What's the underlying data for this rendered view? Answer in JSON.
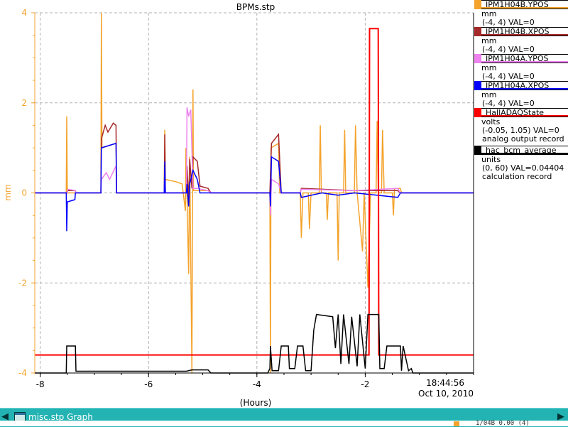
{
  "chart_data": {
    "type": "line",
    "title": "BPMs.stp",
    "xlabel": "(Hours)",
    "ylabel": "mm",
    "xlim": [
      -8.1,
      0
    ],
    "ylim": [
      -4,
      4
    ],
    "x_ticks": [
      -8,
      -6,
      -4,
      -2
    ],
    "x_tick_labels": [
      "-8",
      "-6",
      "-4",
      "-2"
    ],
    "y_ticks": [
      -4,
      -2,
      0,
      2,
      4
    ],
    "y_tick_labels": [
      "-4",
      "-2",
      "0",
      "2",
      "4"
    ],
    "end_time": "18:44:56",
    "end_date": "Oct 10, 2010",
    "grid": true,
    "legend_placement": "right",
    "axis_color": "#f4a32c",
    "series": [
      {
        "name": "IPM1H04B.YPOS",
        "color": "#f4a32c",
        "points": [
          [
            -8.1,
            0
          ],
          [
            -7.52,
            0
          ],
          [
            -7.51,
            1.7
          ],
          [
            -7.5,
            0
          ],
          [
            -6.88,
            0
          ],
          [
            -6.87,
            4
          ],
          [
            -6.86,
            1.0
          ],
          [
            -6.6,
            1.1
          ],
          [
            -6.59,
            0
          ],
          [
            -5.71,
            0
          ],
          [
            -5.7,
            1.4
          ],
          [
            -5.69,
            0.3
          ],
          [
            -5.5,
            0.25
          ],
          [
            -5.38,
            0.2
          ],
          [
            -5.32,
            -0.4
          ],
          [
            -5.31,
            1.0
          ],
          [
            -5.26,
            -1.8
          ],
          [
            -5.24,
            0.8
          ],
          [
            -5.2,
            -4
          ],
          [
            -5.18,
            2.3
          ],
          [
            -5.17,
            0.05
          ],
          [
            -4.9,
            0.05
          ],
          [
            -4.85,
            0
          ],
          [
            -3.76,
            0
          ],
          [
            -3.75,
            -4
          ],
          [
            -3.74,
            1.0
          ],
          [
            -3.6,
            1.1
          ],
          [
            -3.58,
            0
          ],
          [
            -3.2,
            0
          ],
          [
            -3.18,
            -1.0
          ],
          [
            -3.15,
            0
          ],
          [
            -3.05,
            0
          ],
          [
            -3.03,
            -0.8
          ],
          [
            -3.0,
            0
          ],
          [
            -2.85,
            0
          ],
          [
            -2.83,
            1.5
          ],
          [
            -2.81,
            0
          ],
          [
            -2.72,
            0
          ],
          [
            -2.7,
            -0.6
          ],
          [
            -2.68,
            0
          ],
          [
            -2.52,
            0
          ],
          [
            -2.5,
            -1.5
          ],
          [
            -2.48,
            0
          ],
          [
            -2.4,
            0
          ],
          [
            -2.38,
            1.4
          ],
          [
            -2.36,
            0
          ],
          [
            -2.2,
            0
          ],
          [
            -2.18,
            1.5
          ],
          [
            -2.15,
            0
          ],
          [
            -2.05,
            -1.3
          ],
          [
            -2.02,
            0
          ],
          [
            -1.95,
            -2.1
          ],
          [
            -1.9,
            0
          ],
          [
            -1.8,
            0
          ],
          [
            -1.78,
            1.6
          ],
          [
            -1.76,
            0
          ],
          [
            -1.7,
            0
          ],
          [
            -1.68,
            1.4
          ],
          [
            -1.65,
            0
          ],
          [
            -1.5,
            0
          ],
          [
            -1.48,
            -0.5
          ],
          [
            -1.46,
            0.1
          ],
          [
            -1.35,
            0.1
          ],
          [
            -1.33,
            0
          ],
          [
            0,
            0
          ]
        ]
      },
      {
        "name": "IPM1H04B.XPOS",
        "color": "#a52a2a",
        "points": [
          [
            -8.1,
            0
          ],
          [
            -7.5,
            0
          ],
          [
            -7.49,
            0.05
          ],
          [
            -7.35,
            0.05
          ],
          [
            -7.34,
            0
          ],
          [
            -6.88,
            0
          ],
          [
            -6.87,
            1.2
          ],
          [
            -6.8,
            1.5
          ],
          [
            -6.75,
            1.35
          ],
          [
            -6.65,
            1.55
          ],
          [
            -6.6,
            1.5
          ],
          [
            -6.59,
            0
          ],
          [
            -5.71,
            0
          ],
          [
            -5.7,
            1.3
          ],
          [
            -5.69,
            0
          ],
          [
            -5.3,
            0
          ],
          [
            -5.29,
            0.6
          ],
          [
            -5.26,
            -0.2
          ],
          [
            -5.24,
            0.75
          ],
          [
            -5.2,
            0.1
          ],
          [
            -5.18,
            0.8
          ],
          [
            -5.1,
            0.7
          ],
          [
            -5.05,
            0.15
          ],
          [
            -4.9,
            0.1
          ],
          [
            -4.85,
            0
          ],
          [
            -3.76,
            0
          ],
          [
            -3.75,
            0.4
          ],
          [
            -3.73,
            1.1
          ],
          [
            -3.6,
            1.3
          ],
          [
            -3.55,
            0
          ],
          [
            -3.2,
            0
          ],
          [
            -3.18,
            0.1
          ],
          [
            -2.2,
            0.05
          ],
          [
            -1.4,
            0.05
          ],
          [
            -1.35,
            0
          ],
          [
            0,
            0
          ]
        ]
      },
      {
        "name": "IPM1H04A.YPOS",
        "color": "#ee82ee",
        "points": [
          [
            -8.1,
            0
          ],
          [
            -7.5,
            0
          ],
          [
            -7.49,
            0.08
          ],
          [
            -7.35,
            0.05
          ],
          [
            -7.34,
            0
          ],
          [
            -6.88,
            0
          ],
          [
            -6.87,
            0.3
          ],
          [
            -6.78,
            0.45
          ],
          [
            -6.72,
            0.3
          ],
          [
            -6.6,
            0.6
          ],
          [
            -6.59,
            0
          ],
          [
            -5.71,
            0
          ],
          [
            -5.7,
            0.5
          ],
          [
            -5.69,
            0
          ],
          [
            -5.3,
            0
          ],
          [
            -5.29,
            1.9
          ],
          [
            -5.26,
            1.7
          ],
          [
            -5.22,
            1.85
          ],
          [
            -5.18,
            0.1
          ],
          [
            -5.1,
            0.1
          ],
          [
            -4.9,
            0.05
          ],
          [
            -4.85,
            0
          ],
          [
            -3.76,
            0
          ],
          [
            -3.75,
            -0.5
          ],
          [
            -3.73,
            0.3
          ],
          [
            -3.6,
            0.2
          ],
          [
            -3.55,
            0
          ],
          [
            -3.2,
            0
          ],
          [
            -3.18,
            0.08
          ],
          [
            -2.2,
            0.05
          ],
          [
            -1.4,
            0.1
          ],
          [
            -1.35,
            0
          ],
          [
            0,
            0
          ]
        ]
      },
      {
        "name": "IPM1H04A.XPOS",
        "color": "#0000ff",
        "points": [
          [
            -8.1,
            0
          ],
          [
            -7.52,
            0
          ],
          [
            -7.51,
            -0.85
          ],
          [
            -7.5,
            -0.2
          ],
          [
            -7.36,
            -0.15
          ],
          [
            -7.35,
            0
          ],
          [
            -6.88,
            0
          ],
          [
            -6.87,
            1.0
          ],
          [
            -6.6,
            1.1
          ],
          [
            -6.59,
            0
          ],
          [
            -5.71,
            0
          ],
          [
            -5.7,
            0.7
          ],
          [
            -5.69,
            0
          ],
          [
            -5.3,
            0
          ],
          [
            -5.29,
            0.2
          ],
          [
            -5.26,
            -0.3
          ],
          [
            -5.24,
            0.2
          ],
          [
            -5.18,
            0.5
          ],
          [
            -5.1,
            0.3
          ],
          [
            -5.05,
            0.0
          ],
          [
            -4.9,
            0
          ],
          [
            -4.85,
            0
          ],
          [
            -3.76,
            0
          ],
          [
            -3.75,
            -0.3
          ],
          [
            -3.73,
            0.8
          ],
          [
            -3.6,
            0.7
          ],
          [
            -3.55,
            0
          ],
          [
            -3.2,
            0
          ],
          [
            -3.18,
            -0.1
          ],
          [
            -2.8,
            0
          ],
          [
            -2.5,
            -0.05
          ],
          [
            -2.2,
            0
          ],
          [
            -1.4,
            -0.1
          ],
          [
            -1.35,
            0
          ],
          [
            0,
            0
          ]
        ]
      },
      {
        "name": "HallADAQState",
        "color": "#ff0000",
        "points": [
          [
            -8.1,
            -3.6
          ],
          [
            -1.93,
            -3.6
          ],
          [
            -1.92,
            3.65
          ],
          [
            -1.76,
            3.65
          ],
          [
            -1.75,
            -3.6
          ],
          [
            0,
            -3.6
          ]
        ]
      },
      {
        "name": "hac_bcm_average",
        "color": "#000000",
        "points": [
          [
            -8.1,
            -4.0
          ],
          [
            -7.52,
            -4.0
          ],
          [
            -7.51,
            -3.4
          ],
          [
            -7.35,
            -3.4
          ],
          [
            -7.34,
            -3.96
          ],
          [
            -5.3,
            -3.96
          ],
          [
            -5.2,
            -3.93
          ],
          [
            -4.9,
            -3.93
          ],
          [
            -4.85,
            -4.0
          ],
          [
            -3.8,
            -4.0
          ],
          [
            -3.76,
            -3.9
          ],
          [
            -3.75,
            -3.4
          ],
          [
            -3.72,
            -3.95
          ],
          [
            -3.6,
            -3.95
          ],
          [
            -3.55,
            -3.4
          ],
          [
            -3.42,
            -3.4
          ],
          [
            -3.4,
            -3.9
          ],
          [
            -3.3,
            -3.9
          ],
          [
            -3.25,
            -3.4
          ],
          [
            -3.15,
            -3.4
          ],
          [
            -3.1,
            -3.95
          ],
          [
            -3.0,
            -3.95
          ],
          [
            -2.95,
            -3.05
          ],
          [
            -2.9,
            -2.7
          ],
          [
            -2.6,
            -2.75
          ],
          [
            -2.55,
            -3.45
          ],
          [
            -2.5,
            -2.7
          ],
          [
            -2.45,
            -3.8
          ],
          [
            -2.4,
            -2.7
          ],
          [
            -2.3,
            -3.8
          ],
          [
            -2.25,
            -2.75
          ],
          [
            -2.15,
            -3.85
          ],
          [
            -2.1,
            -2.7
          ],
          [
            -2.0,
            -3.9
          ],
          [
            -1.95,
            -2.7
          ],
          [
            -1.75,
            -2.7
          ],
          [
            -1.73,
            -3.9
          ],
          [
            -1.65,
            -3.9
          ],
          [
            -1.6,
            -3.4
          ],
          [
            -1.35,
            -3.4
          ],
          [
            -1.33,
            -3.95
          ],
          [
            -1.3,
            -3.4
          ],
          [
            -1.2,
            -3.95
          ],
          [
            -1.15,
            -3.9
          ],
          [
            -1.12,
            -4.0
          ],
          [
            0,
            -4.0
          ]
        ]
      }
    ]
  },
  "legend": [
    {
      "name": "IPM1H04B.YPOS",
      "color": "#f4a32c",
      "units": "mm",
      "range": "(-4, 4) VAL=0",
      "extra": ""
    },
    {
      "name": "IPM1H04B.XPOS",
      "color": "#a52a2a",
      "units": "mm",
      "range": "(-4, 4) VAL=0",
      "extra": ""
    },
    {
      "name": "IPM1H04A.YPOS",
      "color": "#ee82ee",
      "units": "mm",
      "range": "(-4, 4) VAL=0",
      "extra": ""
    },
    {
      "name": "IPM1H04A.XPOS",
      "color": "#0000ff",
      "units": "mm",
      "range": "(-4, 4) VAL=0",
      "extra": ""
    },
    {
      "name": "HallADAQState",
      "color": "#ff0000",
      "units": "volts",
      "range": "(-0.05, 1.05) VAL=0",
      "extra": "analog output record"
    },
    {
      "name": "hac_bcm_average",
      "color": "#000000",
      "units": "units",
      "range": "(0, 60) VAL=0.04404",
      "extra": "calculation record"
    }
  ],
  "taskbar": {
    "title": "misc.stp Graph",
    "left_arrow_icon": "left-arrow-icon",
    "right_arrow_icon": "right-arrow-icon",
    "window_icon": "window-icon",
    "under_text": "1/04B  0.00  (4)"
  }
}
